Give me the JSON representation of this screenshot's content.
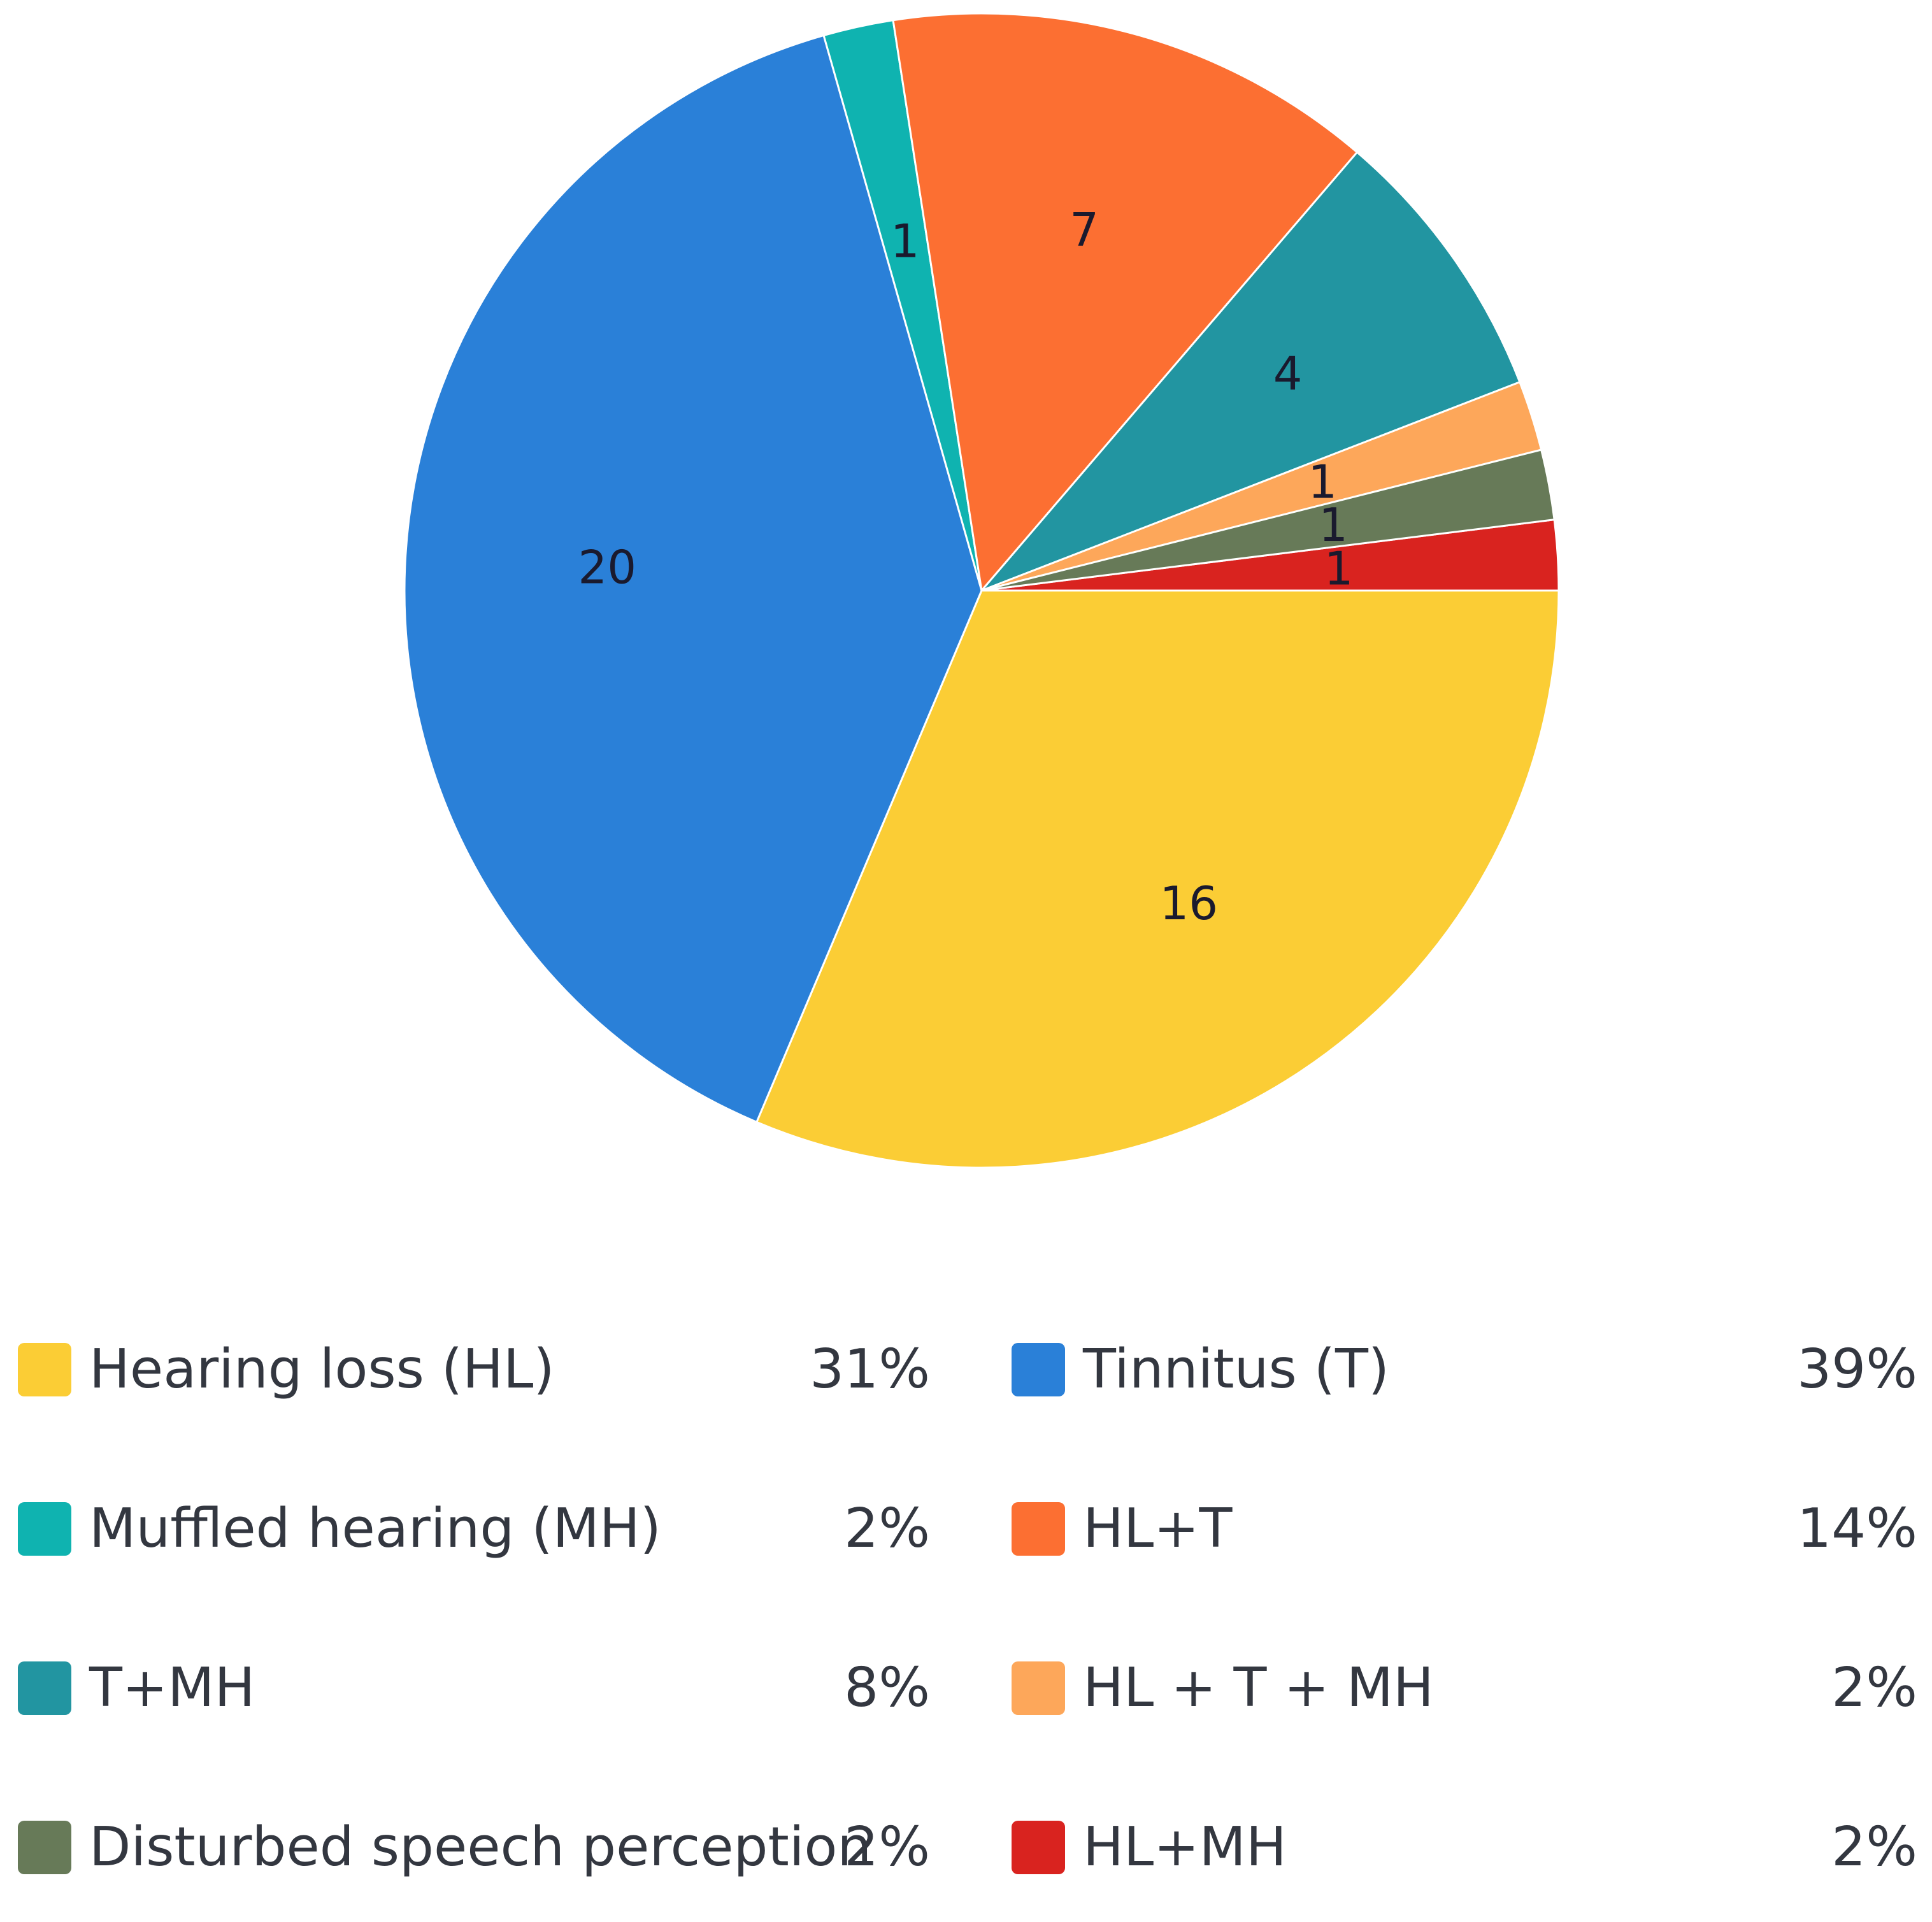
{
  "chart_data": {
    "type": "pie",
    "title": "",
    "slices": [
      {
        "label": "HL+MH",
        "value": 1,
        "percent_label": "2%",
        "color": "#d9231f"
      },
      {
        "label": "Hearing loss (HL)",
        "value": 16,
        "percent_label": "31%",
        "color": "#fbcd35"
      },
      {
        "label": "Tinnitus (T)",
        "value": 20,
        "percent_label": "39%",
        "color": "#2a80d8"
      },
      {
        "label": "Muffled hearing (MH)",
        "value": 1,
        "percent_label": "2%",
        "color": "#0fb3b0"
      },
      {
        "label": "HL+T",
        "value": 7,
        "percent_label": "14%",
        "color": "#fc6f32"
      },
      {
        "label": "T+MH",
        "value": 4,
        "percent_label": "8%",
        "color": "#2295a1"
      },
      {
        "label": "HL + T + MH",
        "value": 1,
        "percent_label": "2%",
        "color": "#fda75a"
      },
      {
        "label": "Disturbed speech perception",
        "value": 1,
        "percent_label": "2%",
        "color": "#677a58"
      }
    ],
    "legend": [
      {
        "label": "Hearing loss (HL)",
        "percent": "31%",
        "color": "#fbcd35"
      },
      {
        "label": "Tinnitus (T)",
        "percent": "39%",
        "color": "#2a80d8"
      },
      {
        "label": "Muffled hearing (MH)",
        "percent": "2%",
        "color": "#0fb3b0"
      },
      {
        "label": "HL+T",
        "percent": "14%",
        "color": "#fc6f32"
      },
      {
        "label": "T+MH",
        "percent": "8%",
        "color": "#2295a1"
      },
      {
        "label": "HL + T + MH",
        "percent": "2%",
        "color": "#fda75a"
      },
      {
        "label": "Disturbed speech perception",
        "percent": "2%",
        "color": "#677a58"
      },
      {
        "label": "HL+MH",
        "percent": "2%",
        "color": "#d9231f"
      }
    ],
    "legend_position": "bottom"
  }
}
